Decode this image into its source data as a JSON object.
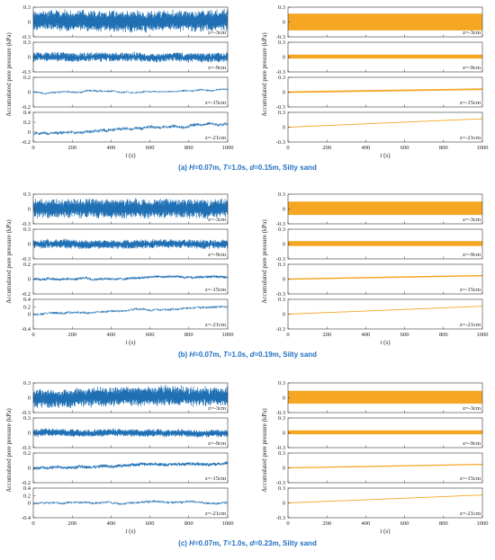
{
  "figure": {
    "captions": [
      {
        "prefix": "(a) ",
        "H": "H",
        "Hval": "=0.07m, ",
        "T": "T",
        "Tval": "=1.0s, ",
        "d": "d",
        "dval": "=0.15m, Silty  sand"
      },
      {
        "prefix": "(b) ",
        "H": "H",
        "Hval": "=0.07m, ",
        "T": "T",
        "Tval": "=1.0s, ",
        "d": "d",
        "dval": "=0.19m, Silty sand"
      },
      {
        "prefix": "(c) ",
        "H": "H",
        "Hval": "=0.07m, ",
        "T": "T",
        "Tval": "=1.0s, ",
        "d": "d",
        "dval": "=0.23m, Silty sand"
      }
    ],
    "ylabel": "Accumulated pore pressure (kPa)",
    "xlabel_italic": "t",
    "xlabel_unit": " (s)",
    "colors": {
      "measured": "#1f6fb4",
      "predicted": "#f5a623",
      "caption": "#1f6fc2"
    }
  },
  "chart_data": [
    {
      "group": "a",
      "type": "line",
      "x_range": [
        0,
        1000
      ],
      "x_ticks": [
        "0",
        "200",
        "400",
        "600",
        "800",
        "1000"
      ],
      "left": [
        {
          "z": "z=-3cm",
          "ylim": [
            -0.3,
            0.3
          ],
          "yticks": [
            "-0.3",
            "0",
            "0.3"
          ],
          "mean": [
            0.02,
            0.02
          ],
          "amp": 0.17,
          "noise": 0.06,
          "wander": 0.03,
          "lw": 0.7
        },
        {
          "z": "z=-9cm",
          "ylim": [
            -0.3,
            0.3
          ],
          "yticks": [
            "-0.3",
            "0",
            "0.3"
          ],
          "mean": [
            0.0,
            0.0
          ],
          "amp": 0.06,
          "noise": 0.04,
          "wander": 0.03,
          "lw": 0.7
        },
        {
          "z": "z=-15cm",
          "ylim": [
            -0.2,
            0.2
          ],
          "yticks": [
            "-0.2",
            "0",
            "0.2"
          ],
          "mean": [
            0.0,
            0.03
          ],
          "amp": 0.0,
          "noise": 0.012,
          "wander": 0.02,
          "lw": 0.5
        },
        {
          "z": "z=-21cm",
          "ylim": [
            -0.2,
            0.4
          ],
          "yticks": [
            "-0.2",
            "0",
            "0.2",
            "0.4"
          ],
          "mean": [
            -0.03,
            0.2
          ],
          "amp": 0.0,
          "noise": 0.03,
          "wander": 0.05,
          "lw": 0.5
        }
      ],
      "right": [
        {
          "z": "z=-3cm",
          "ylim": [
            -0.3,
            0.3
          ],
          "yticks": [
            "-0.3",
            "0",
            "0.3"
          ],
          "band": [
            -0.17,
            0.17
          ]
        },
        {
          "z": "z=-9cm",
          "ylim": [
            -0.3,
            0.3
          ],
          "yticks": [
            "-0.3",
            "0",
            "0.3"
          ],
          "band": [
            -0.03,
            0.05
          ]
        },
        {
          "z": "z=-15cm",
          "ylim": [
            -0.3,
            0.3
          ],
          "yticks": [
            "-0.3",
            "0",
            "0.3"
          ],
          "line": [
            0.0,
            0.06
          ],
          "lw": 1.8
        },
        {
          "z": "z=-21cm",
          "ylim": [
            -0.3,
            0.3
          ],
          "yticks": [
            "-0.3",
            "0",
            "0.3"
          ],
          "line": [
            0.0,
            0.17
          ],
          "lw": 0.9
        }
      ]
    },
    {
      "group": "b",
      "type": "line",
      "x_range": [
        0,
        1000
      ],
      "x_ticks": [
        "0",
        "200",
        "400",
        "600",
        "800",
        "1000"
      ],
      "left": [
        {
          "z": "z=-3cm",
          "ylim": [
            -0.3,
            0.3
          ],
          "yticks": [
            "-0.3",
            "0",
            "0.3"
          ],
          "mean": [
            0.01,
            0.01
          ],
          "amp": 0.15,
          "noise": 0.06,
          "wander": 0.03,
          "lw": 0.7
        },
        {
          "z": "z=-9cm",
          "ylim": [
            -0.3,
            0.3
          ],
          "yticks": [
            "-0.3",
            "0",
            "0.3"
          ],
          "mean": [
            0.0,
            0.0
          ],
          "amp": 0.06,
          "noise": 0.035,
          "wander": 0.02,
          "lw": 0.7
        },
        {
          "z": "z=-15cm",
          "ylim": [
            -0.2,
            0.2
          ],
          "yticks": [
            "-0.2",
            "0",
            "0.2"
          ],
          "mean": [
            0.0,
            0.03
          ],
          "amp": 0.0,
          "noise": 0.015,
          "wander": 0.02,
          "lw": 0.6
        },
        {
          "z": "z=-21cm",
          "ylim": [
            -0.4,
            0.4
          ],
          "yticks": [
            "-0.4",
            "0",
            "0.2",
            "0.4"
          ],
          "mean": [
            0.0,
            0.2
          ],
          "amp": 0.0,
          "noise": 0.03,
          "wander": 0.05,
          "lw": 0.5
        }
      ],
      "right": [
        {
          "z": "z=-3cm",
          "ylim": [
            -0.3,
            0.3
          ],
          "yticks": [
            "-0.3",
            "0",
            "0.3"
          ],
          "band": [
            -0.12,
            0.15
          ]
        },
        {
          "z": "z=-9cm",
          "ylim": [
            -0.3,
            0.3
          ],
          "yticks": [
            "-0.3",
            "0",
            "0.3"
          ],
          "band": [
            -0.04,
            0.06
          ]
        },
        {
          "z": "z=-15cm",
          "ylim": [
            -0.3,
            0.3
          ],
          "yticks": [
            "-0.3",
            "0",
            "0.3"
          ],
          "line": [
            0.0,
            0.07
          ],
          "lw": 1.5
        },
        {
          "z": "z=-21cm",
          "ylim": [
            -0.3,
            0.3
          ],
          "yticks": [
            "-0.3",
            "0",
            "0.3"
          ],
          "line": [
            0.0,
            0.16
          ],
          "lw": 0.9
        }
      ]
    },
    {
      "group": "c",
      "type": "line",
      "x_range": [
        0,
        1000
      ],
      "x_ticks": [
        "0",
        "200",
        "400",
        "600",
        "800",
        "1000"
      ],
      "left": [
        {
          "z": "z=-3cm",
          "ylim": [
            -0.3,
            0.3
          ],
          "yticks": [
            "-0.3",
            "0",
            "0.3"
          ],
          "mean": [
            -0.02,
            0.06
          ],
          "amp": 0.15,
          "noise": 0.06,
          "wander": 0.04,
          "lw": 0.7
        },
        {
          "z": "z=-9cm",
          "ylim": [
            -0.3,
            0.3
          ],
          "yticks": [
            "-0.3",
            "0",
            "0.3"
          ],
          "mean": [
            0.0,
            0.0
          ],
          "amp": 0.05,
          "noise": 0.03,
          "wander": 0.02,
          "lw": 0.7
        },
        {
          "z": "z=-15cm",
          "ylim": [
            -0.2,
            0.2
          ],
          "yticks": [
            "-0.2",
            "0",
            "0.2"
          ],
          "mean": [
            0.0,
            0.06
          ],
          "amp": 0.0,
          "noise": 0.02,
          "wander": 0.02,
          "lw": 0.6
        },
        {
          "z": "z=-21cm",
          "ylim": [
            -0.4,
            0.4
          ],
          "yticks": [
            "-0.4",
            "0",
            "0.2",
            "0.4"
          ],
          "mean": [
            -0.02,
            0.03
          ],
          "amp": 0.0,
          "noise": 0.03,
          "wander": 0.04,
          "lw": 0.5
        }
      ],
      "right": [
        {
          "z": "z=-3cm",
          "ylim": [
            -0.3,
            0.3
          ],
          "yticks": [
            "-0.3",
            "0",
            "0.3"
          ],
          "band": [
            -0.12,
            0.14
          ]
        },
        {
          "z": "z=-9cm",
          "ylim": [
            -0.3,
            0.3
          ],
          "yticks": [
            "-0.3",
            "0",
            "0.3"
          ],
          "band": [
            -0.03,
            0.05
          ]
        },
        {
          "z": "z=-15cm",
          "ylim": [
            -0.3,
            0.3
          ],
          "yticks": [
            "-0.3",
            "0",
            "0.3"
          ],
          "line": [
            0.0,
            0.07
          ],
          "lw": 1.3
        },
        {
          "z": "z=-21cm",
          "ylim": [
            -0.3,
            0.3
          ],
          "yticks": [
            "-0.3",
            "0",
            "0.3"
          ],
          "line": [
            0.0,
            0.16
          ],
          "lw": 0.9
        }
      ]
    }
  ]
}
